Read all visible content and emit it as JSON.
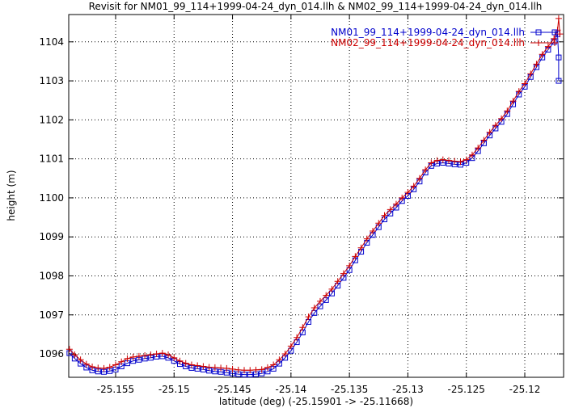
{
  "chart_data": {
    "type": "line",
    "title": "Revisit for NM01_99_114+1999-04-24_dyn_014.llh & NM02_99_114+1999-04-24_dyn_014.llh",
    "xlabel": "latitude (deg) (-25.15901 -> -25.11668)",
    "ylabel": "height (m)",
    "xlim": [
      -25.15901,
      -25.11668
    ],
    "ylim": [
      1095.4,
      1104.7
    ],
    "grid": true,
    "legend_position": "top-right",
    "x_ticks": [
      -25.155,
      -25.15,
      -25.145,
      -25.14,
      -25.135,
      -25.13,
      -25.125,
      -25.12
    ],
    "x_tick_labels": [
      "-25.155",
      "-25.15",
      "-25.145",
      "-25.14",
      "-25.135",
      "-25.13",
      "-25.125",
      "-25.12"
    ],
    "y_ticks": [
      1096,
      1097,
      1098,
      1099,
      1100,
      1101,
      1102,
      1103,
      1104
    ],
    "y_tick_labels": [
      "1096",
      "1097",
      "1098",
      "1099",
      "1100",
      "1101",
      "1102",
      "1103",
      "1104"
    ],
    "series": [
      {
        "name": "NM01_99_114+1999-04-24_dyn_014.llh",
        "color": "#0000cc",
        "marker": "open-square",
        "points": [
          [
            -25.15895,
            1096.02
          ],
          [
            -25.1585,
            1095.88
          ],
          [
            -25.158,
            1095.75
          ],
          [
            -25.1575,
            1095.65
          ],
          [
            -25.157,
            1095.58
          ],
          [
            -25.1565,
            1095.55
          ],
          [
            -25.156,
            1095.54
          ],
          [
            -25.1555,
            1095.56
          ],
          [
            -25.155,
            1095.6
          ],
          [
            -25.1545,
            1095.68
          ],
          [
            -25.154,
            1095.76
          ],
          [
            -25.1535,
            1095.82
          ],
          [
            -25.153,
            1095.85
          ],
          [
            -25.1525,
            1095.88
          ],
          [
            -25.152,
            1095.9
          ],
          [
            -25.1515,
            1095.93
          ],
          [
            -25.151,
            1095.94
          ],
          [
            -25.1505,
            1095.9
          ],
          [
            -25.15,
            1095.82
          ],
          [
            -25.1495,
            1095.74
          ],
          [
            -25.149,
            1095.68
          ],
          [
            -25.1485,
            1095.64
          ],
          [
            -25.148,
            1095.62
          ],
          [
            -25.1475,
            1095.6
          ],
          [
            -25.147,
            1095.57
          ],
          [
            -25.1465,
            1095.55
          ],
          [
            -25.146,
            1095.54
          ],
          [
            -25.1455,
            1095.52
          ],
          [
            -25.145,
            1095.5
          ],
          [
            -25.1445,
            1095.48
          ],
          [
            -25.144,
            1095.47
          ],
          [
            -25.1435,
            1095.47
          ],
          [
            -25.143,
            1095.48
          ],
          [
            -25.1425,
            1095.5
          ],
          [
            -25.142,
            1095.55
          ],
          [
            -25.1415,
            1095.62
          ],
          [
            -25.141,
            1095.75
          ],
          [
            -25.1405,
            1095.9
          ],
          [
            -25.14,
            1096.08
          ],
          [
            -25.1395,
            1096.3
          ],
          [
            -25.139,
            1096.55
          ],
          [
            -25.1385,
            1096.82
          ],
          [
            -25.138,
            1097.05
          ],
          [
            -25.1375,
            1097.22
          ],
          [
            -25.137,
            1097.38
          ],
          [
            -25.1365,
            1097.55
          ],
          [
            -25.136,
            1097.75
          ],
          [
            -25.1355,
            1097.95
          ],
          [
            -25.135,
            1098.15
          ],
          [
            -25.1345,
            1098.4
          ],
          [
            -25.134,
            1098.62
          ],
          [
            -25.1335,
            1098.85
          ],
          [
            -25.133,
            1099.05
          ],
          [
            -25.1325,
            1099.25
          ],
          [
            -25.132,
            1099.45
          ],
          [
            -25.1315,
            1099.6
          ],
          [
            -25.131,
            1099.75
          ],
          [
            -25.1305,
            1099.92
          ],
          [
            -25.13,
            1100.05
          ],
          [
            -25.1295,
            1100.22
          ],
          [
            -25.129,
            1100.42
          ],
          [
            -25.1285,
            1100.65
          ],
          [
            -25.128,
            1100.82
          ],
          [
            -25.1275,
            1100.88
          ],
          [
            -25.127,
            1100.9
          ],
          [
            -25.1265,
            1100.88
          ],
          [
            -25.126,
            1100.86
          ],
          [
            -25.1255,
            1100.85
          ],
          [
            -25.125,
            1100.9
          ],
          [
            -25.1245,
            1101.02
          ],
          [
            -25.124,
            1101.2
          ],
          [
            -25.1235,
            1101.4
          ],
          [
            -25.123,
            1101.6
          ],
          [
            -25.1225,
            1101.78
          ],
          [
            -25.122,
            1101.95
          ],
          [
            -25.1215,
            1102.15
          ],
          [
            -25.121,
            1102.4
          ],
          [
            -25.1205,
            1102.65
          ],
          [
            -25.12,
            1102.85
          ],
          [
            -25.1195,
            1103.1
          ],
          [
            -25.119,
            1103.35
          ],
          [
            -25.1185,
            1103.6
          ],
          [
            -25.118,
            1103.8
          ],
          [
            -25.1175,
            1104.0
          ],
          [
            -25.1172,
            1104.2
          ],
          [
            -25.1171,
            1103.6
          ],
          [
            -25.1171,
            1103.0
          ]
        ]
      },
      {
        "name": "NM02_99_114+1999-04-24_dyn_014.llh",
        "color": "#cc0000",
        "marker": "plus",
        "points": [
          [
            -25.15895,
            1096.12
          ],
          [
            -25.1585,
            1095.98
          ],
          [
            -25.158,
            1095.85
          ],
          [
            -25.1575,
            1095.74
          ],
          [
            -25.157,
            1095.67
          ],
          [
            -25.1565,
            1095.64
          ],
          [
            -25.156,
            1095.63
          ],
          [
            -25.1555,
            1095.66
          ],
          [
            -25.155,
            1095.72
          ],
          [
            -25.1545,
            1095.8
          ],
          [
            -25.154,
            1095.88
          ],
          [
            -25.1535,
            1095.92
          ],
          [
            -25.153,
            1095.94
          ],
          [
            -25.1525,
            1095.96
          ],
          [
            -25.152,
            1095.98
          ],
          [
            -25.1515,
            1096.0
          ],
          [
            -25.151,
            1096.02
          ],
          [
            -25.1505,
            1095.98
          ],
          [
            -25.15,
            1095.9
          ],
          [
            -25.1495,
            1095.82
          ],
          [
            -25.149,
            1095.76
          ],
          [
            -25.1485,
            1095.72
          ],
          [
            -25.148,
            1095.7
          ],
          [
            -25.1475,
            1095.68
          ],
          [
            -25.147,
            1095.66
          ],
          [
            -25.1465,
            1095.65
          ],
          [
            -25.146,
            1095.64
          ],
          [
            -25.1455,
            1095.63
          ],
          [
            -25.145,
            1095.61
          ],
          [
            -25.1445,
            1095.59
          ],
          [
            -25.144,
            1095.58
          ],
          [
            -25.1435,
            1095.58
          ],
          [
            -25.143,
            1095.59
          ],
          [
            -25.1425,
            1095.6
          ],
          [
            -25.142,
            1095.65
          ],
          [
            -25.1415,
            1095.72
          ],
          [
            -25.141,
            1095.85
          ],
          [
            -25.1405,
            1096.0
          ],
          [
            -25.14,
            1096.2
          ],
          [
            -25.1395,
            1096.42
          ],
          [
            -25.139,
            1096.68
          ],
          [
            -25.1385,
            1096.95
          ],
          [
            -25.138,
            1097.18
          ],
          [
            -25.1375,
            1097.35
          ],
          [
            -25.137,
            1097.5
          ],
          [
            -25.1365,
            1097.66
          ],
          [
            -25.136,
            1097.86
          ],
          [
            -25.1355,
            1098.06
          ],
          [
            -25.135,
            1098.26
          ],
          [
            -25.1345,
            1098.5
          ],
          [
            -25.134,
            1098.72
          ],
          [
            -25.1335,
            1098.95
          ],
          [
            -25.133,
            1099.15
          ],
          [
            -25.1325,
            1099.35
          ],
          [
            -25.132,
            1099.55
          ],
          [
            -25.1315,
            1099.7
          ],
          [
            -25.131,
            1099.84
          ],
          [
            -25.1305,
            1100.0
          ],
          [
            -25.13,
            1100.14
          ],
          [
            -25.1295,
            1100.3
          ],
          [
            -25.129,
            1100.5
          ],
          [
            -25.1285,
            1100.72
          ],
          [
            -25.128,
            1100.9
          ],
          [
            -25.1275,
            1100.96
          ],
          [
            -25.127,
            1100.98
          ],
          [
            -25.1265,
            1100.96
          ],
          [
            -25.126,
            1100.94
          ],
          [
            -25.1255,
            1100.93
          ],
          [
            -25.125,
            1100.98
          ],
          [
            -25.1245,
            1101.1
          ],
          [
            -25.124,
            1101.28
          ],
          [
            -25.1235,
            1101.48
          ],
          [
            -25.123,
            1101.68
          ],
          [
            -25.1225,
            1101.86
          ],
          [
            -25.122,
            1102.03
          ],
          [
            -25.1215,
            1102.23
          ],
          [
            -25.121,
            1102.48
          ],
          [
            -25.1205,
            1102.73
          ],
          [
            -25.12,
            1102.93
          ],
          [
            -25.1195,
            1103.18
          ],
          [
            -25.119,
            1103.43
          ],
          [
            -25.1185,
            1103.68
          ],
          [
            -25.118,
            1103.88
          ],
          [
            -25.1175,
            1104.08
          ],
          [
            -25.1172,
            1104.3
          ],
          [
            -25.1171,
            1104.6
          ],
          [
            -25.117,
            1104.2
          ]
        ]
      }
    ]
  }
}
